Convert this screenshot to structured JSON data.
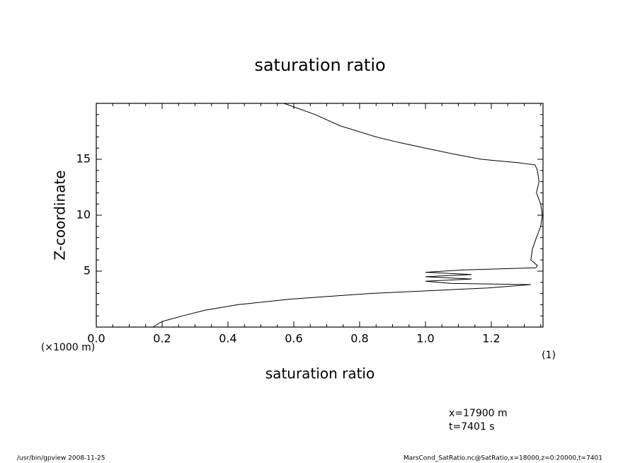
{
  "chart_data": {
    "type": "line",
    "title": "saturation ratio",
    "xlabel": "saturation ratio",
    "ylabel": "Z-coordinate",
    "yunit": "(×1000 m)",
    "xunit": "(1)",
    "annotations": [
      "x=17900 m",
      "t=7401 s"
    ],
    "footer_left": "/usr/bin/gpview   2008-11-25",
    "footer_right": "MarsCond_SatRatio.nc@SatRatio,x=18000,z=0:20000,t=7401",
    "xlim": [
      0,
      1.357
    ],
    "ylim": [
      0,
      20
    ],
    "xticks": [
      {
        "value": 0,
        "label": "0.0"
      },
      0.2,
      0.4,
      0.6,
      0.8,
      {
        "value": 1,
        "label": "1.0"
      },
      1.2
    ],
    "yticks": [
      5,
      10,
      15
    ],
    "xminorticks": [
      0.05,
      0.1,
      0.15,
      0.25,
      0.3,
      0.35,
      0.45,
      0.5,
      0.55,
      0.65,
      0.7,
      0.75,
      0.85,
      0.9,
      0.95,
      1.05,
      1.1,
      1.15,
      1.25,
      1.3,
      1.35
    ],
    "yminorticks": [
      1,
      2,
      3,
      4,
      6,
      7,
      8,
      9,
      11,
      12,
      13,
      14,
      16,
      17,
      18,
      19
    ],
    "color": "#000000",
    "x": [
      0.172,
      0.2,
      0.262,
      0.33,
      0.43,
      0.59,
      0.83,
      1.19,
      1.32,
      1.08,
      1.0,
      1.14,
      1.0,
      1.14,
      1.0,
      1.11,
      1.335,
      1.34,
      1.32,
      1.325,
      1.337,
      1.35,
      1.355,
      1.35,
      1.337,
      1.345,
      1.34,
      1.333,
      1.28,
      1.17,
      1.08,
      1.0,
      0.92,
      0.85,
      0.74,
      0.665,
      0.57
    ],
    "values": [
      0,
      0.5,
      1,
      1.5,
      2,
      2.5,
      3,
      3.5,
      3.8,
      3.9,
      4.1,
      4.3,
      4.5,
      4.7,
      4.9,
      5.1,
      5.3,
      5.5,
      6,
      7,
      8,
      9,
      10,
      11,
      12,
      13,
      14,
      14.5,
      14.7,
      15,
      15.5,
      16,
      16.5,
      17,
      18,
      19,
      20
    ]
  }
}
